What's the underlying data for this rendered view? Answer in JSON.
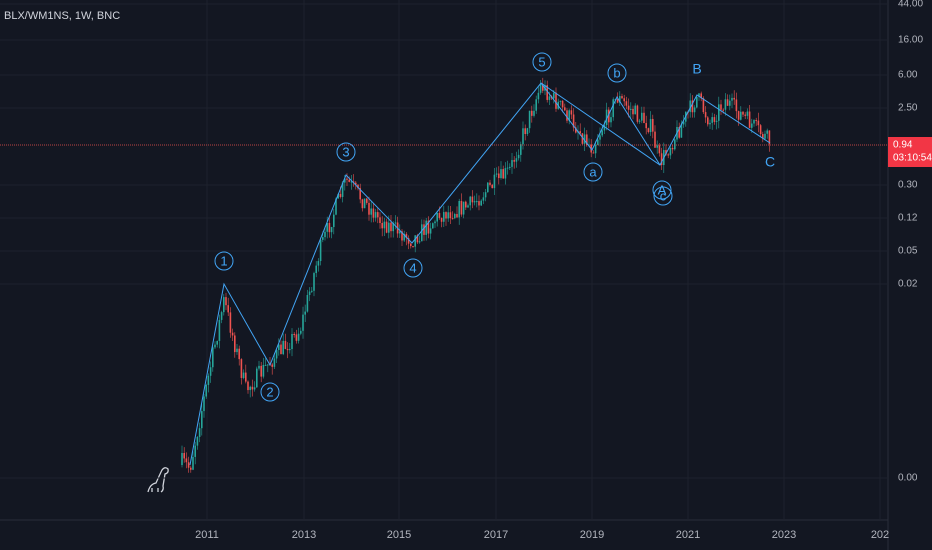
{
  "header": {
    "symbol": "BLX/WM1NS, 1W, BNC"
  },
  "price_axis": {
    "labels": [
      "44.00",
      "16.00",
      "6.00",
      "2.50",
      "0.30",
      "0.12",
      "0.05",
      "0.02",
      "0.00"
    ]
  },
  "last_price": {
    "price": "0.94",
    "countdown": "03:10:54"
  },
  "time_axis": {
    "labels": [
      "2011",
      "2013",
      "2015",
      "2017",
      "2019",
      "2021",
      "2023",
      "202"
    ]
  },
  "annotations": {
    "circled": [
      "1",
      "2",
      "3",
      "4",
      "5",
      "a",
      "b",
      "A",
      "c"
    ],
    "plain": [
      "B",
      "C"
    ]
  }
}
